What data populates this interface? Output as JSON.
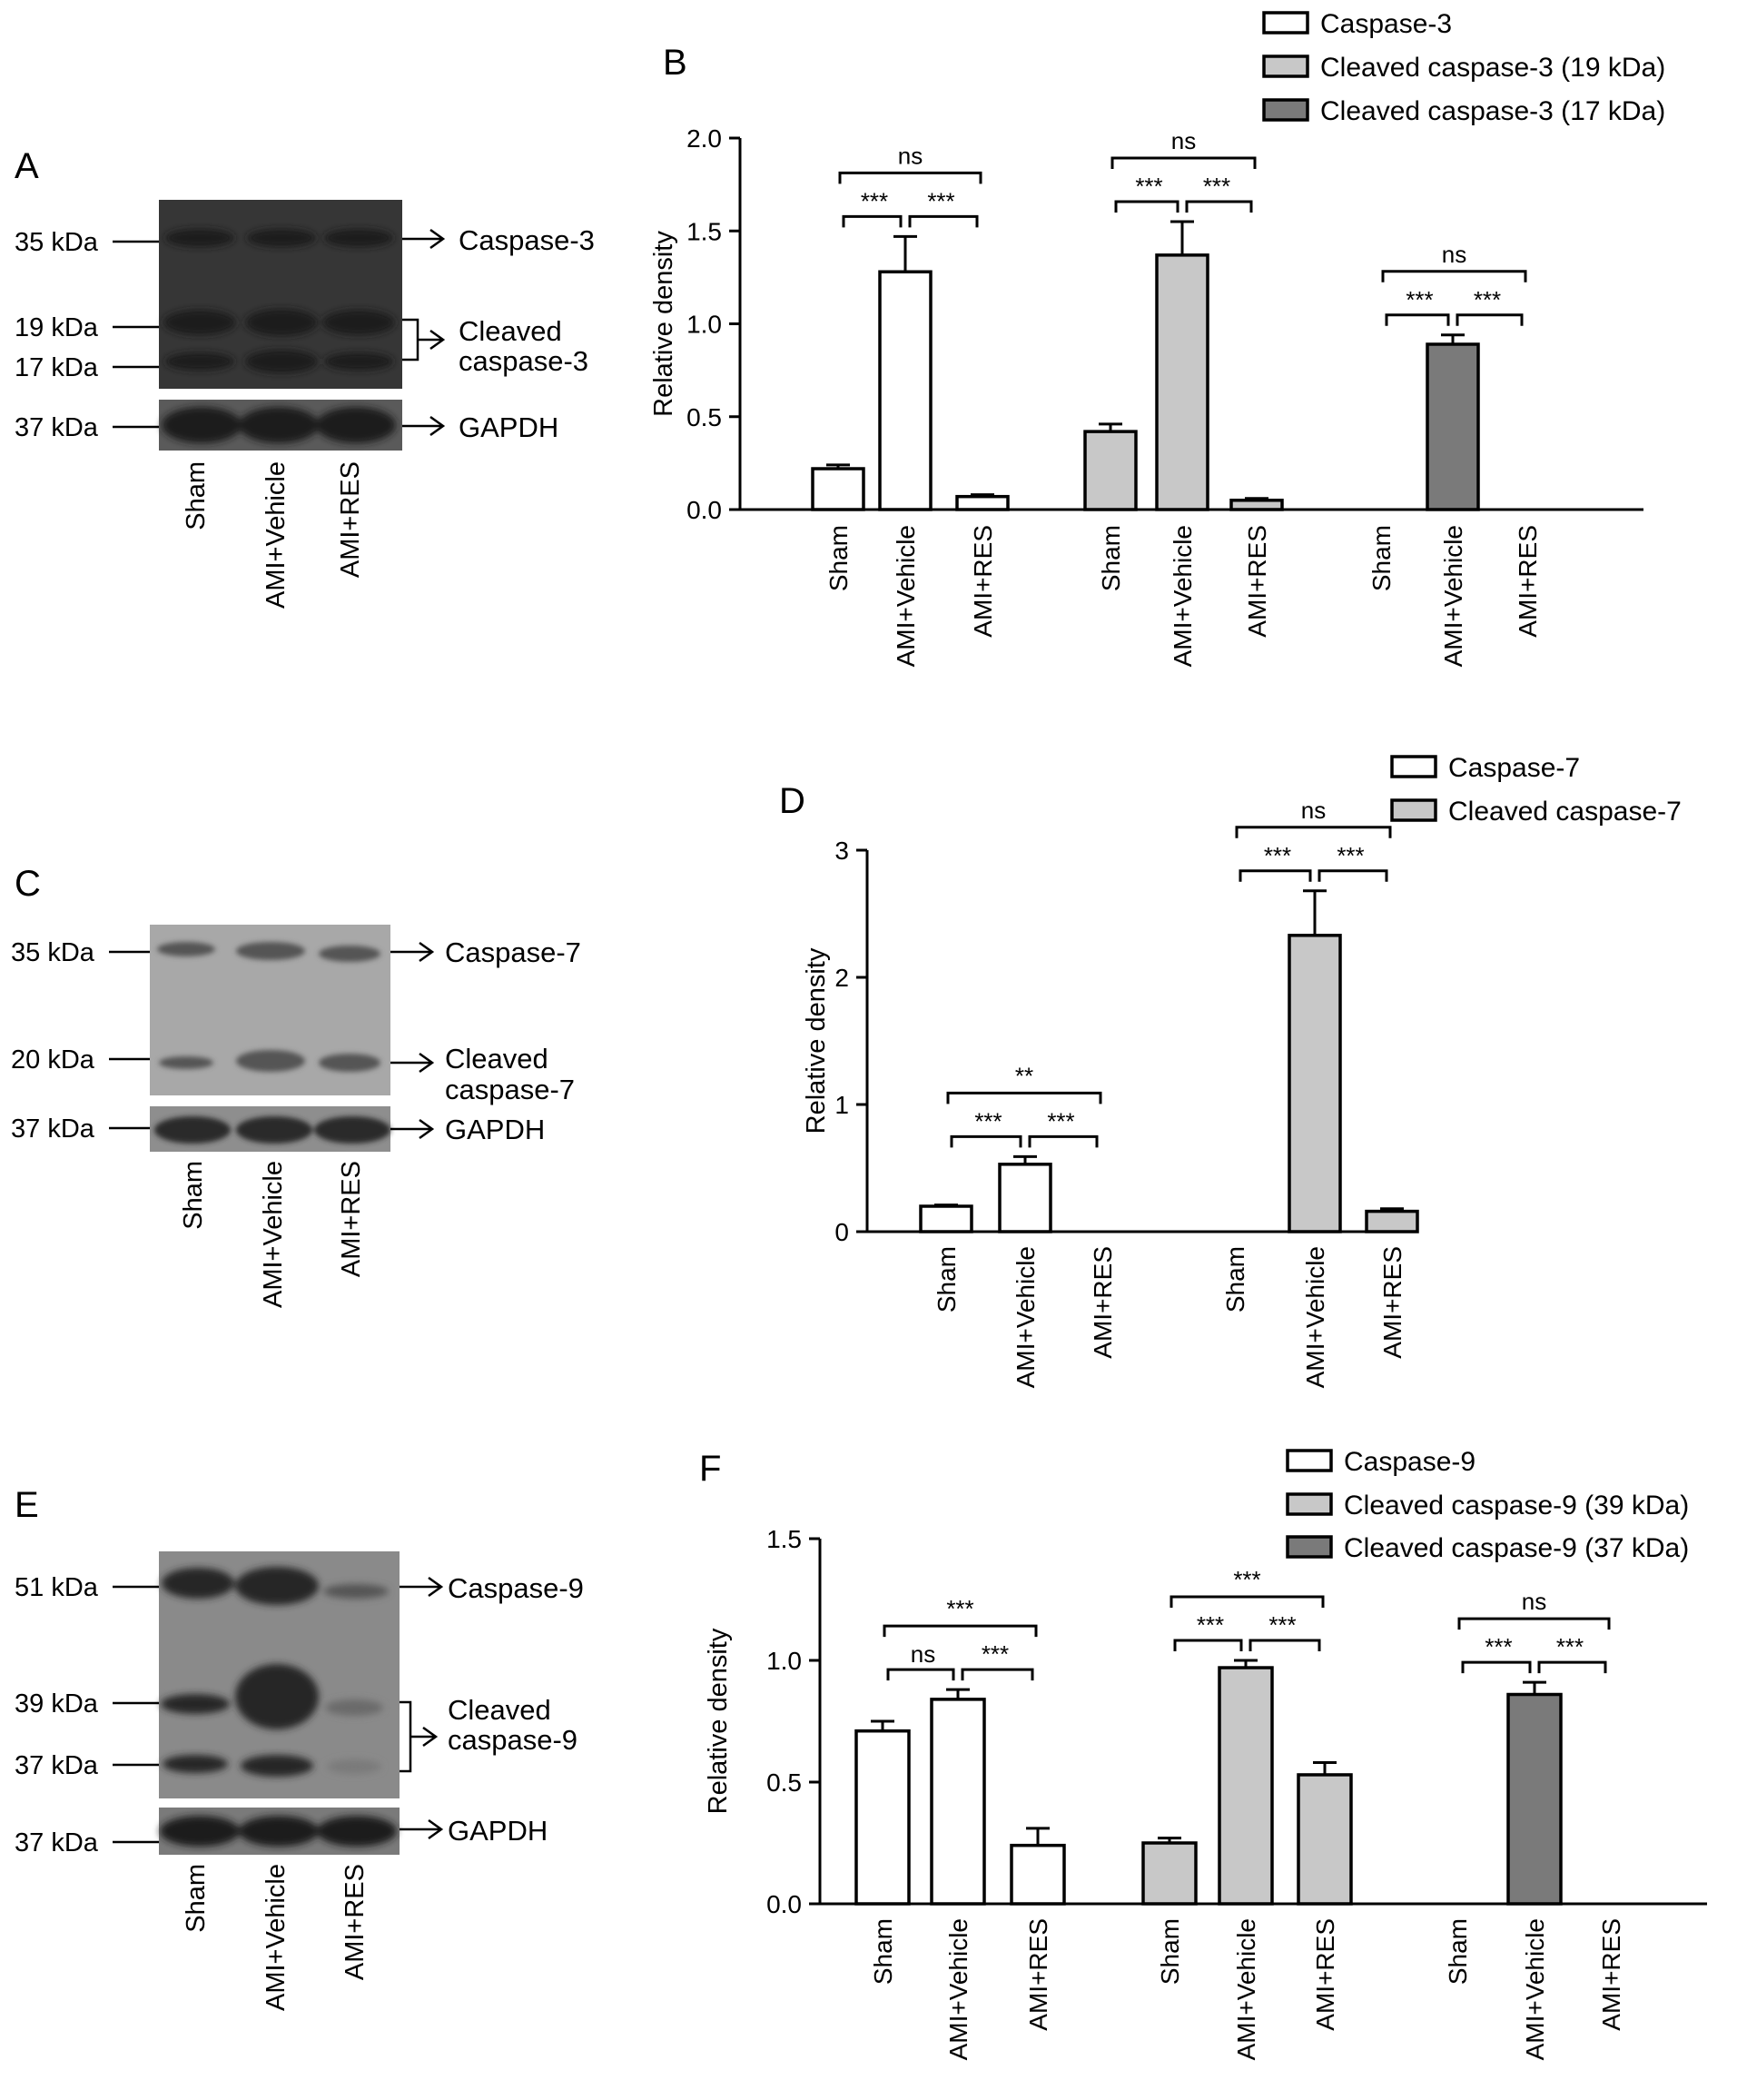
{
  "colors": {
    "white": "#ffffff",
    "light_gray": "#c8c8c8",
    "dark_gray": "#7a7a7a",
    "axis": "#000000"
  },
  "groups": [
    "Sham",
    "AMI+Vehicle",
    "AMI+RES"
  ],
  "blots": [
    {
      "panel": "A",
      "markers": [
        "35 kDa",
        "19 kDa",
        "17 kDa",
        "37 kDa"
      ],
      "labels": [
        "Caspase-3",
        "Cleaved",
        "caspase-3",
        "GAPDH"
      ],
      "lanes": [
        "Sham",
        "AMI+Vehicle",
        "AMI+RES"
      ]
    },
    {
      "panel": "C",
      "markers": [
        "35 kDa",
        "20 kDa",
        "37 kDa"
      ],
      "labels": [
        "Caspase-7",
        "Cleaved",
        "caspase-7",
        "GAPDH"
      ],
      "lanes": [
        "Sham",
        "AMI+Vehicle",
        "AMI+RES"
      ]
    },
    {
      "panel": "E",
      "markers": [
        "51 kDa",
        "39 kDa",
        "37 kDa",
        "37 kDa"
      ],
      "labels": [
        "Caspase-9",
        "Cleaved",
        "caspase-9",
        "GAPDH"
      ],
      "lanes": [
        "Sham",
        "AMI+Vehicle",
        "AMI+RES"
      ]
    }
  ],
  "chart_data": [
    {
      "panel": "B",
      "type": "bar",
      "ylabel": "Relative density",
      "ylim": [
        0,
        2.0
      ],
      "yticks": [
        "0.0",
        "0.5",
        "1.0",
        "1.5",
        "2.0"
      ],
      "categories": [
        "Sham",
        "AMI+Vehicle",
        "AMI+RES"
      ],
      "legend": {
        "position": "top-right"
      },
      "series": [
        {
          "name": "Caspase-3",
          "color": "#ffffff",
          "values": [
            0.22,
            1.28,
            0.07
          ],
          "errors": [
            0.02,
            0.19,
            0.01
          ],
          "significance": {
            "left": "***",
            "right": "***",
            "outer": "ns"
          }
        },
        {
          "name": "Cleaved caspase-3 (19 kDa)",
          "color": "#c8c8c8",
          "values": [
            0.42,
            1.37,
            0.05
          ],
          "errors": [
            0.04,
            0.18,
            0.01
          ],
          "significance": {
            "left": "***",
            "right": "***",
            "outer": "ns"
          }
        },
        {
          "name": "Cleaved caspase-3 (17 kDa)",
          "color": "#7a7a7a",
          "values": [
            0,
            0.89,
            0
          ],
          "errors": [
            0,
            0.05,
            0
          ],
          "significance": {
            "left": "***",
            "right": "***",
            "outer": "ns"
          }
        }
      ]
    },
    {
      "panel": "D",
      "type": "bar",
      "ylabel": "Relative density",
      "ylim": [
        0,
        3
      ],
      "yticks": [
        "0",
        "1",
        "2",
        "3"
      ],
      "categories": [
        "Sham",
        "AMI+Vehicle",
        "AMI+RES"
      ],
      "legend": {
        "position": "top-right"
      },
      "series": [
        {
          "name": "Caspase-7",
          "color": "#ffffff",
          "values": [
            0.2,
            0.53,
            0
          ],
          "errors": [
            0.01,
            0.06,
            0
          ],
          "significance": {
            "left": "***",
            "right": "***",
            "outer": "**"
          }
        },
        {
          "name": "Cleaved caspase-7",
          "color": "#c8c8c8",
          "values": [
            0,
            2.33,
            0.16
          ],
          "errors": [
            0,
            0.35,
            0.02
          ],
          "significance": {
            "left": "***",
            "right": "***",
            "outer": "ns"
          }
        }
      ]
    },
    {
      "panel": "F",
      "type": "bar",
      "ylabel": "Relative density",
      "ylim": [
        0,
        1.5
      ],
      "yticks": [
        "0.0",
        "0.5",
        "1.0",
        "1.5"
      ],
      "categories": [
        "Sham",
        "AMI+Vehicle",
        "AMI+RES"
      ],
      "legend": {
        "position": "top-right"
      },
      "series": [
        {
          "name": "Caspase-9",
          "color": "#ffffff",
          "values": [
            0.71,
            0.84,
            0.24
          ],
          "errors": [
            0.04,
            0.04,
            0.07
          ],
          "significance": {
            "left": "ns",
            "right": "***",
            "outer": "***"
          }
        },
        {
          "name": "Cleaved caspase-9 (39 kDa)",
          "color": "#c8c8c8",
          "values": [
            0.25,
            0.97,
            0.53
          ],
          "errors": [
            0.02,
            0.03,
            0.05
          ],
          "significance": {
            "left": "***",
            "right": "***",
            "outer": "***"
          }
        },
        {
          "name": "Cleaved caspase-9 (37 kDa)",
          "color": "#7a7a7a",
          "values": [
            0,
            0.86,
            0
          ],
          "errors": [
            0,
            0.05,
            0
          ],
          "significance": {
            "left": "***",
            "right": "***",
            "outer": "ns"
          }
        }
      ]
    }
  ]
}
